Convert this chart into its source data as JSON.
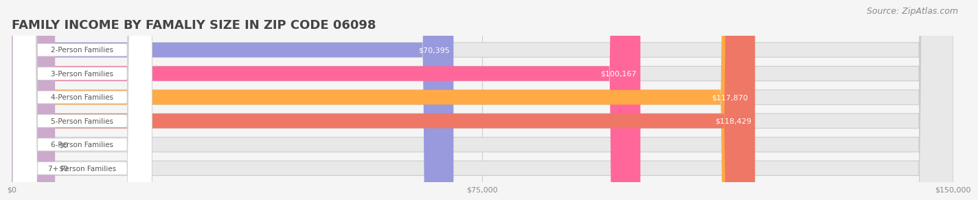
{
  "title": "FAMILY INCOME BY FAMALIY SIZE IN ZIP CODE 06098",
  "source": "Source: ZipAtlas.com",
  "categories": [
    "2-Person Families",
    "3-Person Families",
    "4-Person Families",
    "5-Person Families",
    "6-Person Families",
    "7+ Person Families"
  ],
  "values": [
    70395,
    100167,
    117870,
    118429,
    0,
    0
  ],
  "bar_colors": [
    "#9999DD",
    "#FF6699",
    "#FFAA44",
    "#EE7766",
    "#AABBEE",
    "#CCAACC"
  ],
  "label_values": [
    "$70,395",
    "$100,167",
    "$117,870",
    "$118,429",
    "$0",
    "$0"
  ],
  "xlim": [
    0,
    150000
  ],
  "xticks": [
    0,
    75000,
    150000
  ],
  "xtick_labels": [
    "$0",
    "$75,000",
    "$150,000"
  ],
  "bg_color": "#f5f5f5",
  "bar_bg_color": "#e8e8e8",
  "title_fontsize": 13,
  "source_fontsize": 9,
  "bar_height": 0.62
}
